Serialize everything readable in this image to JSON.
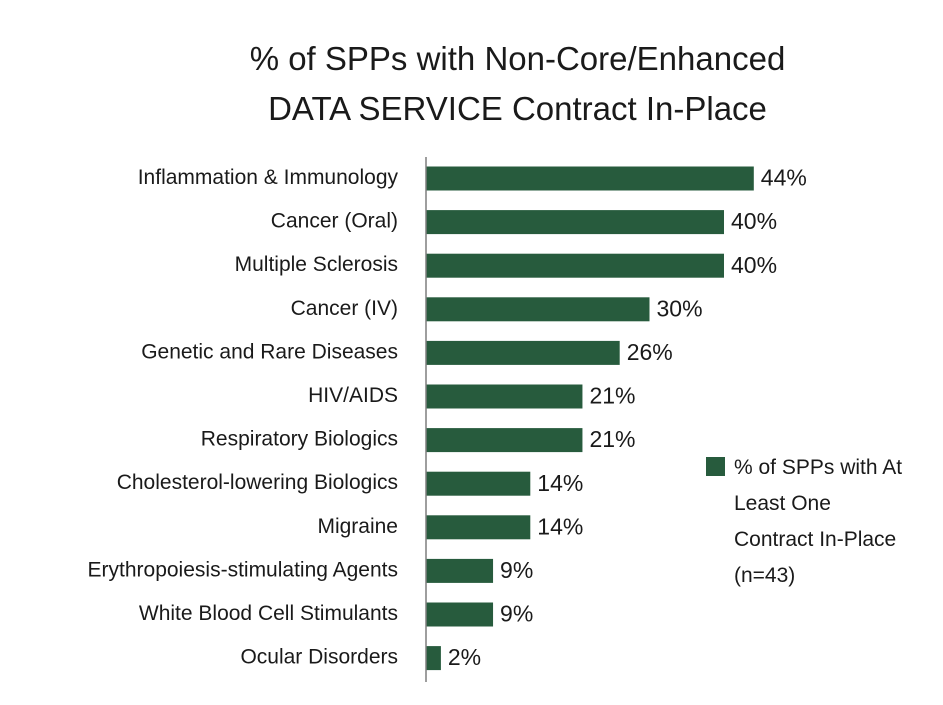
{
  "title_line1": "% of SPPs with Non-Core/Enhanced",
  "title_line2": "DATA SERVICE Contract In-Place",
  "colors": {
    "bar": "#275b3d",
    "axis": "#7f7f7f",
    "text": "#1a1a1a"
  },
  "chart_data": {
    "type": "bar",
    "orientation": "horizontal",
    "title": "% of SPPs with Non-Core/Enhanced DATA SERVICE Contract In-Place",
    "categories": [
      "Inflammation & Immunology",
      "Cancer (Oral)",
      "Multiple Sclerosis",
      "Cancer (IV)",
      "Genetic and Rare Diseases",
      "HIV/AIDS",
      "Respiratory Biologics",
      "Cholesterol-lowering Biologics",
      "Migraine",
      "Erythropoiesis-stimulating Agents",
      "White Blood Cell Stimulants",
      "Ocular Disorders"
    ],
    "series": [
      {
        "name": "% of SPPs with At Least One Contract In-Place (n=43)",
        "values": [
          44,
          40,
          40,
          30,
          26,
          21,
          21,
          14,
          14,
          9,
          9,
          2
        ],
        "labels": [
          "44%",
          "40%",
          "40%",
          "30%",
          "26%",
          "21%",
          "21%",
          "14%",
          "14%",
          "9%",
          "9%",
          "2%"
        ]
      }
    ],
    "xlim": [
      0,
      45
    ],
    "grid": false,
    "legend_position": "right",
    "data_labels": true
  }
}
